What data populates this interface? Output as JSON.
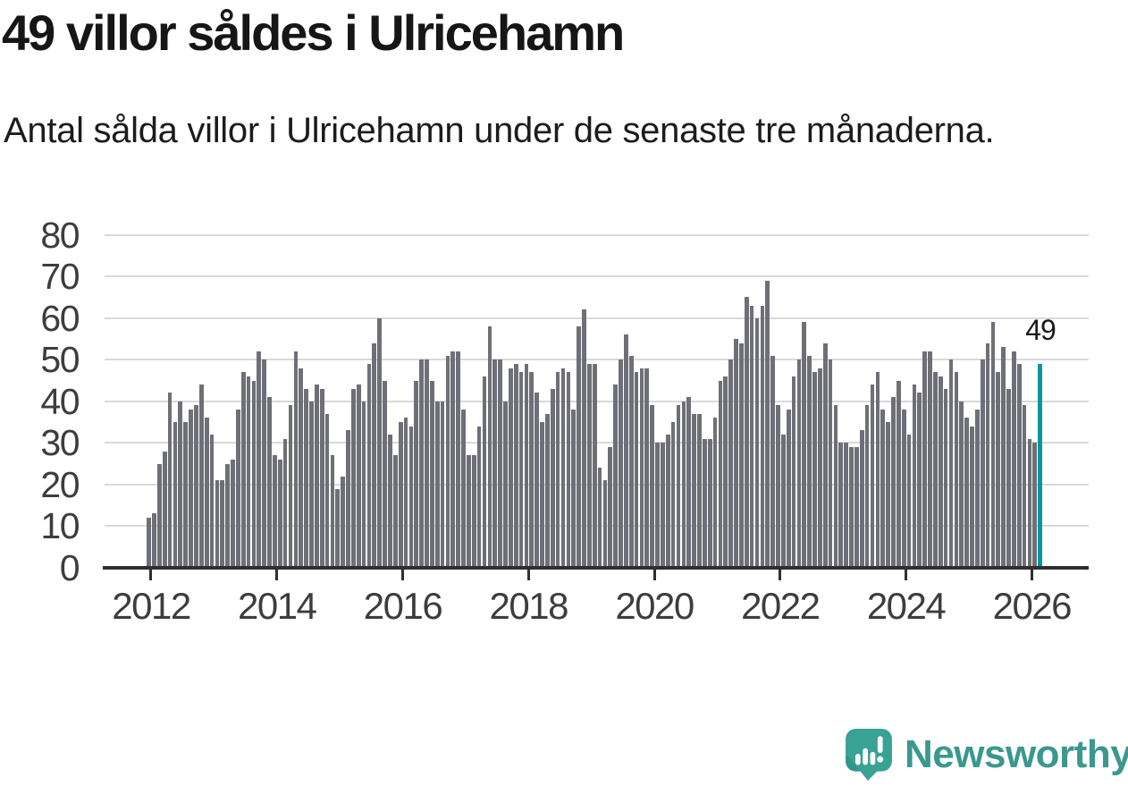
{
  "chart_data": {
    "type": "bar",
    "title": "49 villor såldes i Ulricehamn",
    "subtitle": "Antal sålda villor i Ulricehamn under de senaste tre månaderna.",
    "x_first_year": 2012,
    "x_tick_years": [
      2012,
      2014,
      2016,
      2018,
      2020,
      2022,
      2024,
      2026
    ],
    "ylim": [
      0,
      80
    ],
    "yticks": [
      0,
      10,
      20,
      30,
      40,
      50,
      60,
      70,
      80
    ],
    "grid": "horizontal",
    "values": [
      12,
      13,
      25,
      28,
      42,
      35,
      40,
      35,
      38,
      39,
      44,
      36,
      32,
      21,
      21,
      25,
      26,
      38,
      47,
      46,
      45,
      52,
      50,
      41,
      27,
      26,
      31,
      39,
      52,
      48,
      43,
      40,
      44,
      43,
      37,
      27,
      19,
      22,
      33,
      43,
      44,
      40,
      49,
      54,
      60,
      45,
      32,
      27,
      35,
      36,
      34,
      45,
      50,
      50,
      45,
      40,
      40,
      51,
      52,
      52,
      38,
      27,
      27,
      34,
      46,
      58,
      50,
      50,
      40,
      48,
      49,
      47,
      49,
      47,
      42,
      35,
      37,
      43,
      47,
      48,
      47,
      38,
      58,
      62,
      49,
      49,
      24,
      21,
      29,
      44,
      50,
      56,
      51,
      47,
      48,
      48,
      39,
      30,
      30,
      32,
      35,
      39,
      40,
      41,
      37,
      37,
      31,
      31,
      36,
      45,
      46,
      50,
      55,
      54,
      65,
      63,
      60,
      63,
      69,
      51,
      39,
      32,
      38,
      46,
      50,
      59,
      51,
      47,
      48,
      54,
      50,
      39,
      30,
      30,
      29,
      29,
      33,
      39,
      44,
      47,
      38,
      35,
      41,
      45,
      38,
      32,
      44,
      42,
      52,
      52,
      47,
      46,
      43,
      50,
      47,
      40,
      36,
      34,
      38,
      50,
      54,
      59,
      47,
      53,
      43,
      52,
      49,
      39,
      31,
      30,
      49
    ],
    "bar_color": "#6f6f78",
    "highlight_color": "#009a9c",
    "highlight_last_bar": true,
    "last_value_label": "49",
    "axis_color": "#2f2f2f",
    "gridline_color": "#d9d9d9"
  },
  "branding": {
    "logo_text": "Newsworthy",
    "logo_color": "#3a988e",
    "logo_icon": "newsworthy-speech-bubble-bar-chart-icon",
    "logo_icon_color": "#38a294"
  }
}
